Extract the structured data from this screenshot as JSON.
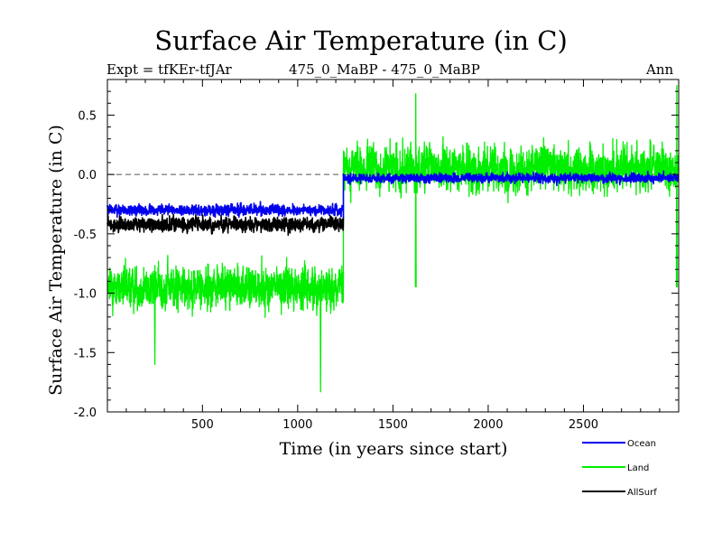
{
  "chart_data": {
    "type": "line",
    "title": "Surface Air Temperature (in C)",
    "subtitle_left": "Expt = tfKEr-tfJAr",
    "subtitle_center": "475_0_MaBP - 475_0_MaBP",
    "subtitle_right": "Ann",
    "xlabel": "Time (in years since start)",
    "ylabel": "Surface Air Temperature (in C)",
    "xlim": [
      1,
      3000
    ],
    "ylim": [
      -2.0,
      0.8
    ],
    "x_ticks": [
      500,
      1000,
      1500,
      2000,
      2500
    ],
    "y_ticks": [
      -2.0,
      -1.5,
      -1.0,
      -0.5,
      0.0,
      0.5
    ],
    "y_tick_labels": [
      "-2.0",
      "-1.5",
      "-1.0",
      "-0.5",
      "0.0",
      "0.5"
    ],
    "zero_reference_line": 0.0,
    "legend_position": "bottom-right, outside plot",
    "series": [
      {
        "name": "Land",
        "color": "#00ee00",
        "segments": [
          {
            "x_start": 1,
            "x_end": 1240,
            "mean": -0.95,
            "amplitude": 0.28
          },
          {
            "x_start": 1240,
            "x_end": 3000,
            "mean": 0.05,
            "amplitude": 0.3
          }
        ],
        "notable_points": [
          {
            "x": 1120,
            "y": -1.83
          },
          {
            "x": 250,
            "y": -1.6
          },
          {
            "x": 2990,
            "y": 0.75
          },
          {
            "x": 1620,
            "y": 0.68
          }
        ]
      },
      {
        "name": "Ocean",
        "color": "#0000ee",
        "segments": [
          {
            "x_start": 1,
            "x_end": 1240,
            "mean": -0.3,
            "amplitude": 0.07
          },
          {
            "x_start": 1240,
            "x_end": 3000,
            "mean": -0.03,
            "amplitude": 0.06
          }
        ]
      },
      {
        "name": "AllSurf",
        "color": "#000000",
        "segments": [
          {
            "x_start": 1,
            "x_end": 1240,
            "mean": -0.42,
            "amplitude": 0.09
          }
        ]
      }
    ]
  }
}
